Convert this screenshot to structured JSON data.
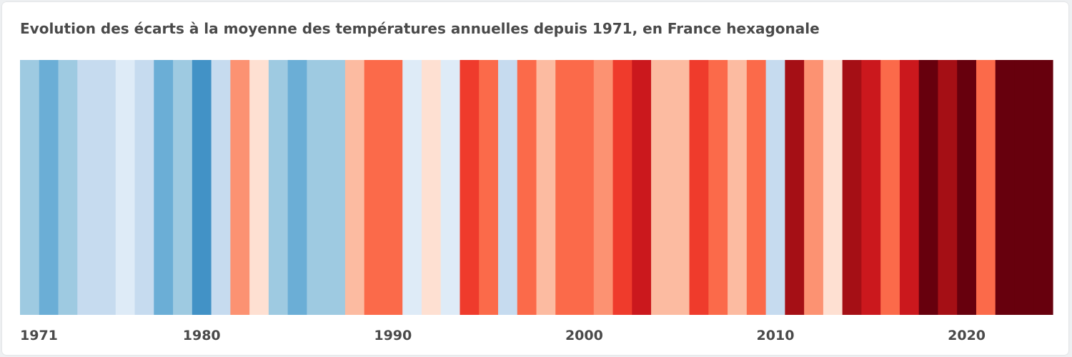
{
  "title": "Evolution des écarts à la moyenne des températures annuelles depuis 1971, en France hexagonale",
  "chart_data": {
    "type": "heatmap",
    "title": "Evolution des écarts à la moyenne des températures annuelles depuis 1971, en France hexagonale",
    "x": [
      1971,
      1972,
      1973,
      1974,
      1975,
      1976,
      1977,
      1978,
      1979,
      1980,
      1981,
      1982,
      1983,
      1984,
      1985,
      1986,
      1987,
      1988,
      1989,
      1990,
      1991,
      1992,
      1993,
      1994,
      1995,
      1996,
      1997,
      1998,
      1999,
      2000,
      2001,
      2002,
      2003,
      2004,
      2005,
      2006,
      2007,
      2008,
      2009,
      2010,
      2011,
      2012,
      2013,
      2014,
      2015,
      2016,
      2017,
      2018,
      2019,
      2020,
      2021,
      2022,
      2023,
      2024
    ],
    "colors": [
      "#9ecae1",
      "#6baed6",
      "#9ecae1",
      "#c6dbef",
      "#c6dbef",
      "#deebf7",
      "#c6dbef",
      "#6baed6",
      "#9ecae1",
      "#4292c6",
      "#c6dbef",
      "#fc9272",
      "#fee0d2",
      "#9ecae1",
      "#6baed6",
      "#9ecae1",
      "#9ecae1",
      "#fcbba1",
      "#fb6a4a",
      "#fb6a4a",
      "#deebf7",
      "#fee0d2",
      "#deebf7",
      "#ef3b2c",
      "#fb6a4a",
      "#c6dbef",
      "#fb6a4a",
      "#fcbba1",
      "#fb6a4a",
      "#fb6a4a",
      "#fc9272",
      "#ef3b2c",
      "#cb181d",
      "#fcbba1",
      "#fcbba1",
      "#ef3b2c",
      "#fb6a4a",
      "#fcbba1",
      "#fb6a4a",
      "#c6dbef",
      "#a50f15",
      "#fc9272",
      "#fee0d2",
      "#a50f15",
      "#cb181d",
      "#fb6a4a",
      "#cb181d",
      "#67000d",
      "#a50f15",
      "#67000d",
      "#fb6a4a",
      "#67000d",
      "#67000d",
      "#67000d"
    ],
    "tick_labels": [
      "1971",
      "1980",
      "1990",
      "2000",
      "2010",
      "2020"
    ],
    "grid": false,
    "legend": "none"
  }
}
